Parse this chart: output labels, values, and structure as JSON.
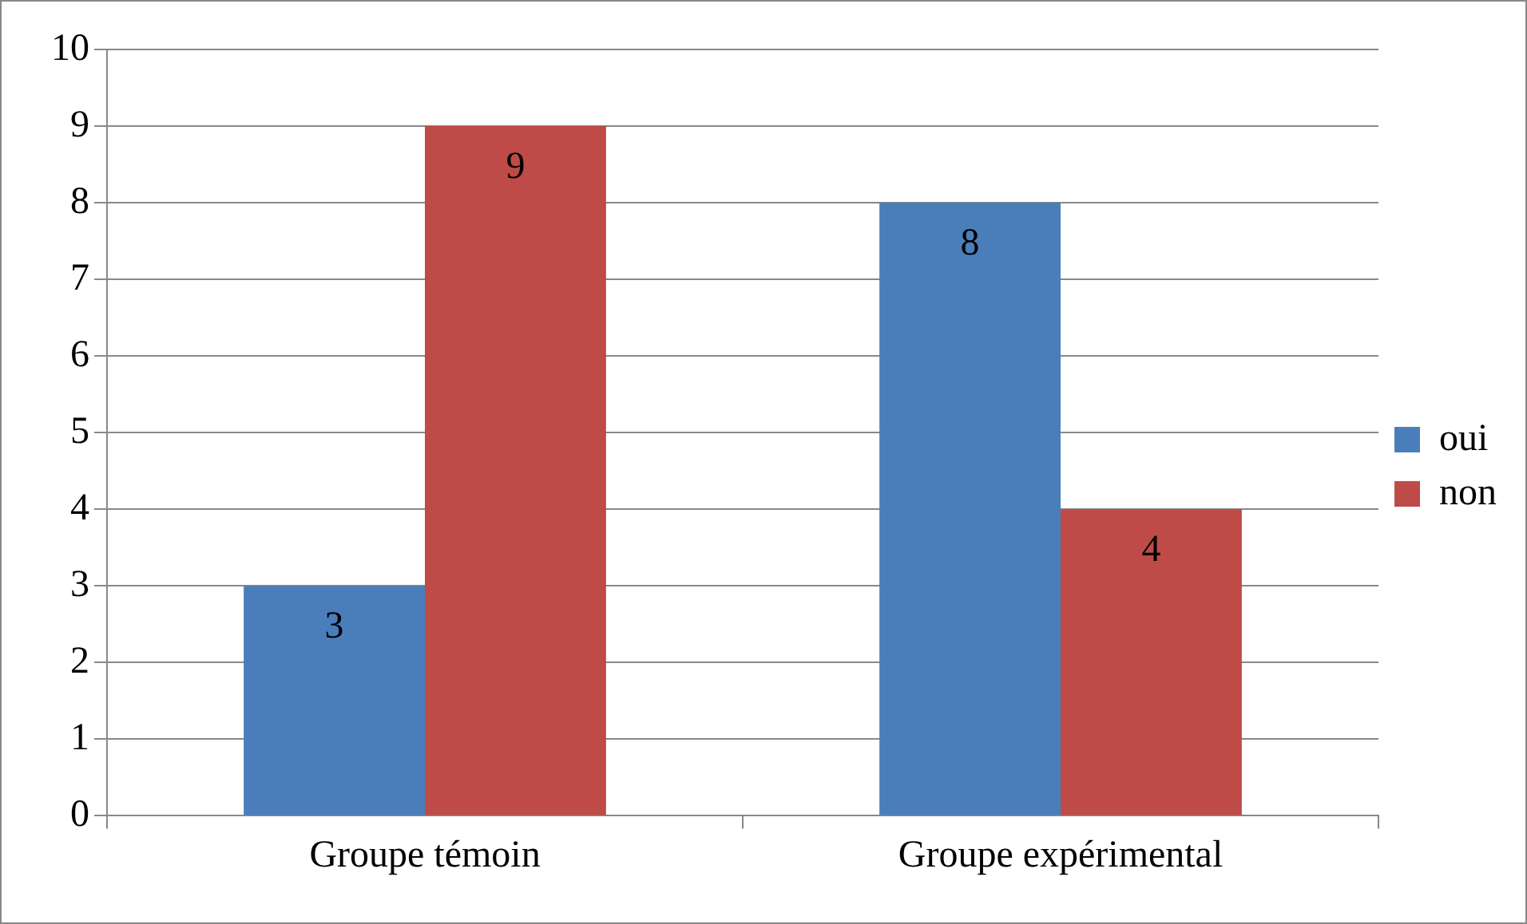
{
  "chart_data": {
    "type": "bar",
    "categories": [
      "Groupe témoin",
      "Groupe expérimental"
    ],
    "series": [
      {
        "name": "oui",
        "color": "#4a7ebb",
        "values": [
          3,
          8
        ]
      },
      {
        "name": "non",
        "color": "#be4b48",
        "values": [
          9,
          4
        ]
      }
    ],
    "ylim": [
      0,
      10
    ],
    "yticks": [
      0,
      1,
      2,
      3,
      4,
      5,
      6,
      7,
      8,
      9,
      10
    ],
    "grid": "y",
    "legend": "right",
    "data_labels": true
  }
}
